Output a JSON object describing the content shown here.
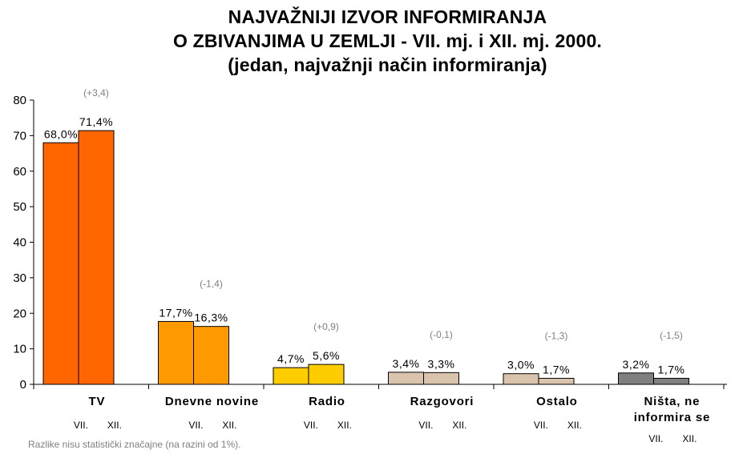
{
  "title": {
    "line1": "NAJVAŽNIJI IZVOR INFORMIRANJA",
    "line2": "O ZBIVANJIMA U ZEMLJI - VII. mj. i  XII. mj. 2000.",
    "line3": "(jedan, najvažnji način informiranja)"
  },
  "footnote": "Razlike nisu statistički značajne (na razini od 1%).",
  "chart_data": {
    "type": "bar",
    "categories": [
      "TV",
      "Dnevne novine",
      "Radio",
      "Razgovori",
      "Ostalo",
      "Ništa, ne informira se"
    ],
    "category_label_lines": [
      [
        "TV"
      ],
      [
        "Dnevne novine"
      ],
      [
        "Radio"
      ],
      [
        "Razgovori"
      ],
      [
        "Ostalo"
      ],
      [
        "Ništa, ne",
        "informira se"
      ]
    ],
    "series": [
      {
        "name": "VII.",
        "values": [
          68.0,
          17.7,
          4.7,
          3.4,
          3.0,
          3.2
        ],
        "labels": [
          "68,0%",
          "17,7%",
          "4,7%",
          "3,4%",
          "3,0%",
          "3,2%"
        ]
      },
      {
        "name": "XII.",
        "values": [
          71.4,
          16.3,
          5.6,
          3.3,
          1.7,
          1.7
        ],
        "labels": [
          "71,4%",
          "16,3%",
          "5,6%",
          "3,3%",
          "1,7%",
          "1,7%"
        ]
      }
    ],
    "differences": [
      "(+3,4)",
      "(-1,4)",
      "(+0,9)",
      "(-0,1)",
      "(-1,3)",
      "(-1,5)"
    ],
    "series_labels_under_axis": [
      "VII.",
      "XII."
    ],
    "colors": [
      [
        "#ff6600",
        "#ff6600"
      ],
      [
        "#ff9900",
        "#ff9900"
      ],
      [
        "#ffcc00",
        "#ffcc00"
      ],
      [
        "#d9c3ac",
        "#d9c3ac"
      ],
      [
        "#d9c3ac",
        "#d9c3ac"
      ],
      [
        "#808080",
        "#808080"
      ]
    ],
    "yticks": [
      0,
      10,
      20,
      30,
      40,
      50,
      60,
      70,
      80
    ],
    "ylim": [
      0,
      80
    ],
    "grid": false
  }
}
